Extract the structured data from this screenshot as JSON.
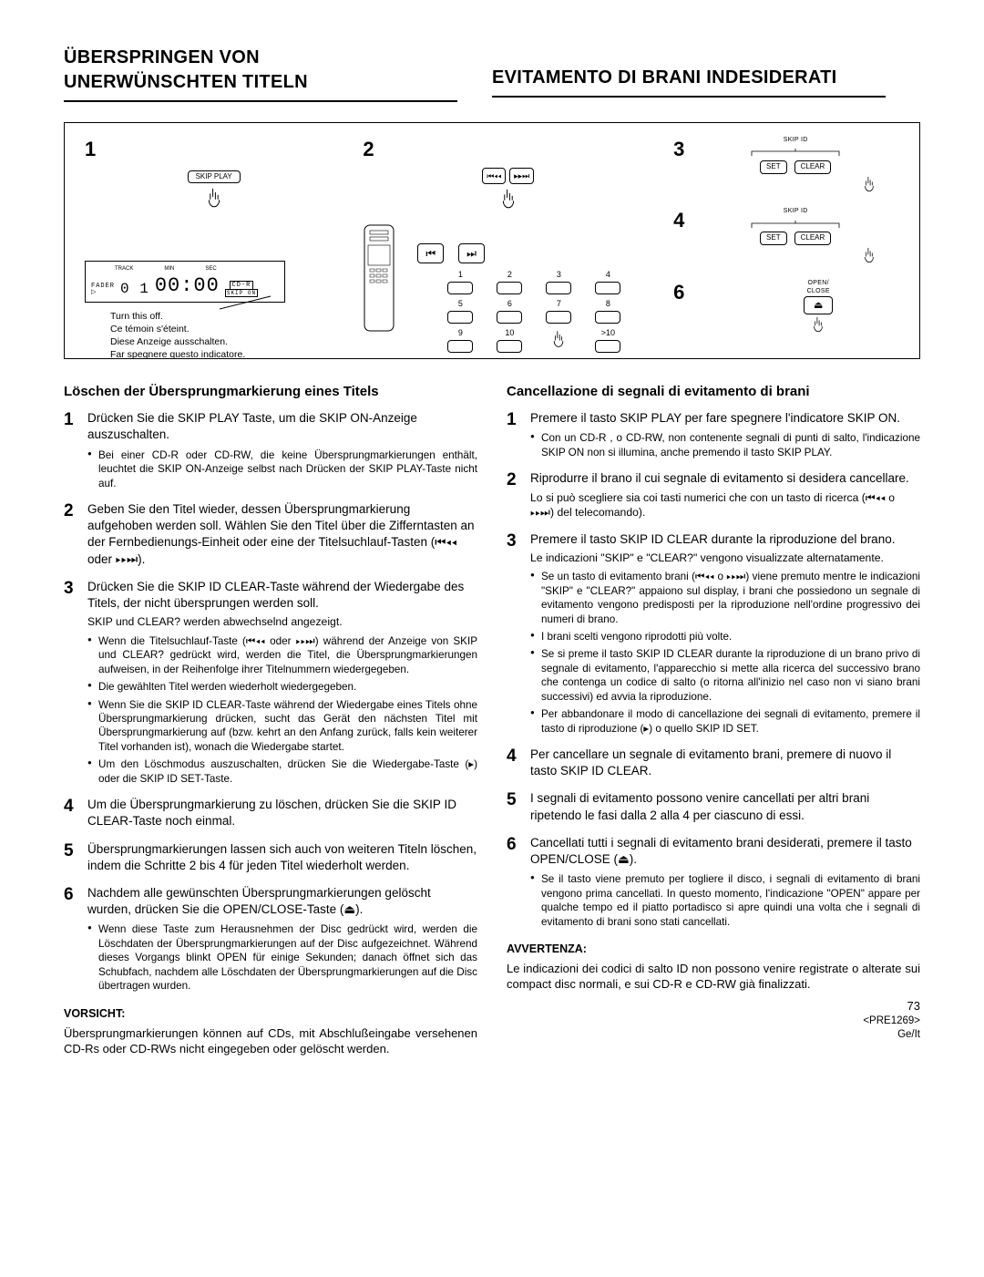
{
  "header": {
    "left": "ÜBERSPRINGEN VON UNERWÜNSCHTEN TITELN",
    "right": "EVITAMENTO DI BRANI INDESIDERATI"
  },
  "diagram": {
    "num1": "1",
    "num2": "2",
    "num3": "3",
    "num4": "4",
    "num6": "6",
    "skip_play": "SKIP PLAY",
    "skip_id": "SKIP ID",
    "set": "SET",
    "clear": "CLEAR",
    "open_close": "OPEN/\nCLOSE",
    "track": "TRACK",
    "min": "MIN",
    "sec": "SEC",
    "cdr": "CD-R",
    "fader": "FADER",
    "skip_on": "SKIP ON",
    "seg_track": "0 1",
    "seg_time": "00:00",
    "turn_off": [
      "Turn this off.",
      "Ce témoin s'éteint.",
      "Diese Anzeige ausschalten.",
      "Far spegnere questo indicatore."
    ],
    "prev": "⏮◂◂",
    "next": "▸▸⏭",
    "bprev": "⏮",
    "bnext": "⏭",
    "nums": [
      "1",
      "2",
      "3",
      "4",
      "5",
      "6",
      "7",
      "8",
      "9",
      "10",
      "",
      ">10"
    ]
  },
  "left": {
    "title": "Löschen der Übersprungmarkierung eines Titels",
    "steps": [
      {
        "lead": "Drücken Sie die SKIP PLAY Taste, um die SKIP ON-Anzeige auszuschalten.",
        "bullets": [
          "Bei einer CD-R oder CD-RW, die keine Übersprung­markierungen enthält, leuchtet die SKIP ON-Anzeige selbst nach Drücken der SKIP PLAY-Taste nicht auf."
        ]
      },
      {
        "lead": "Geben Sie den Titel wieder, dessen Übersprungmarkierung aufgehoben werden soll. Wählen Sie den Titel über die Zifferntasten an der Fernbedienungs-Einheit oder eine der Titelsuchlauf-Tasten (⏮◂◂ oder ▸▸⏭)."
      },
      {
        "lead": "Drücken Sie die SKIP ID CLEAR-Taste während der Wiedergabe des Titels, der nicht übersprungen werden soll.",
        "sub": "SKIP und CLEAR? werden abwechselnd angezeigt.",
        "bullets": [
          "Wenn die Titelsuchlauf-Taste (⏮◂◂ oder ▸▸⏭) während der Anzeige von SKIP und CLEAR? gedrückt wird, werden die Titel, die Übersprungmarkierungen aufweisen, in der Reihenfolge ihrer Titelnummern wiedergegeben.",
          "Die gewählten Titel werden wiederholt wiedergegeben.",
          "Wenn Sie die SKIP ID CLEAR-Taste während der Wiedergabe eines Titels ohne Übersprungmarkierung drücken, sucht das Gerät den nächsten Titel mit Übersprungmarkierung auf (bzw. kehrt an den Anfang zurück, falls kein weiterer Titel vorhanden ist), wonach die Wiedergabe startet.",
          "Um den Löschmodus auszuschalten, drücken Sie die Wiedergabe-Taste (▸) oder die SKIP ID SET-Taste."
        ]
      },
      {
        "lead": "Um die Übersprungmarkierung zu löschen, drücken Sie die SKIP ID CLEAR-Taste noch einmal."
      },
      {
        "lead": "Übersprungmarkierungen lassen sich auch von weiteren Titeln löschen, indem die Schritte 2 bis 4 für jeden Titel wiederholt werden."
      },
      {
        "lead": "Nachdem alle gewünschten Übersprung­markierungen gelöscht wurden, drücken Sie die OPEN/CLOSE-Taste (⏏).",
        "bullets": [
          "Wenn diese Taste zum Herausnehmen der Disc gedrückt wird, werden die Löschdaten der Übersprungmarkierungen auf der Disc aufgezeichnet. Während dieses Vorgangs blinkt OPEN für einige Sekunden; danach öffnet sich das Schubfach, nachdem alle Löschdaten der Übersprungmarkierungen auf die Disc übertragen wurden."
        ]
      }
    ],
    "warn_label": "VORSICHT:",
    "warn_text": "Übersprungmarkierungen können auf CDs, mit Abschluß­eingabe versehenen CD-Rs oder CD-RWs nicht eingegeben oder gelöscht werden."
  },
  "right": {
    "title": "Cancellazione di segnali di evitamento di brani",
    "steps": [
      {
        "lead": "Premere il tasto SKIP PLAY per fare spegnere l'indicatore SKIP ON.",
        "bullets": [
          "Con un CD-R , o CD-RW, non contenente segnali di punti di salto, l'indicazione SKIP ON non si illumina, anche premendo il tasto SKIP PLAY."
        ]
      },
      {
        "lead": "Riprodurre il brano il cui segnale di evitamento si desidera cancellare.",
        "sub": "Lo si può scegliere sia coi tasti numerici che con un tasto di ricerca (⏮◂◂ o ▸▸⏭) del telecomando)."
      },
      {
        "lead": "Premere il tasto SKIP ID CLEAR durante la riproduzione del brano.",
        "sub": "Le indicazioni \"SKIP\" e \"CLEAR?\" vengono visualizzate alternatamente.",
        "bullets": [
          "Se un tasto di evitamento brani (⏮◂◂ o ▸▸⏭) viene premuto mentre le indicazioni \"SKIP\" e \"CLEAR?\" appaiono sul display, i brani che possiedono un segnale di evitamento vengono predisposti per la riproduzione nell'ordine progressivo dei numeri di brano.",
          "I brani scelti vengono riprodotti più volte.",
          "Se si preme il tasto SKIP ID CLEAR durante la riproduzione di un brano privo di segnale di evitamento, l'apparecchio si mette alla ricerca del successivo brano che contenga un codice di salto (o ritorna all'inizio nel caso non vi siano brani successivi) ed avvia la riproduzione.",
          "Per abbandonare il modo di cancellazione dei segnali di evitamento, premere il tasto di riproduzione (▸) o quello SKIP ID SET."
        ]
      },
      {
        "lead": "Per cancellare un segnale di evitamento brani, premere di nuovo il tasto SKIP ID CLEAR."
      },
      {
        "lead": "I segnali di evitamento possono venire cancellati per altri brani ripetendo le fasi dalla 2 alla 4 per ciascuno di essi."
      },
      {
        "lead": "Cancellati tutti i segnali di evitamento brani desiderati, premere il tasto OPEN/CLOSE (⏏).",
        "bullets": [
          "Se il tasto viene premuto per togliere il disco, i segnali di evitamento di brani vengono prima cancellati. In questo momento, l'indicazione \"OPEN\" appare per qualche tempo ed il piatto portadisco si apre quindi una volta che i segnali di evitamento di brani sono stati cancellati."
        ]
      }
    ],
    "warn_label": "AVVERTENZA:",
    "warn_text": "Le indicazioni dei codici di salto ID non possono venire registrate o alterate sui compact disc normali, e sui CD-R e CD-RW già finalizzati."
  },
  "footer": {
    "page": "73",
    "code": "<PRE1269>",
    "langs": "Ge/It"
  }
}
